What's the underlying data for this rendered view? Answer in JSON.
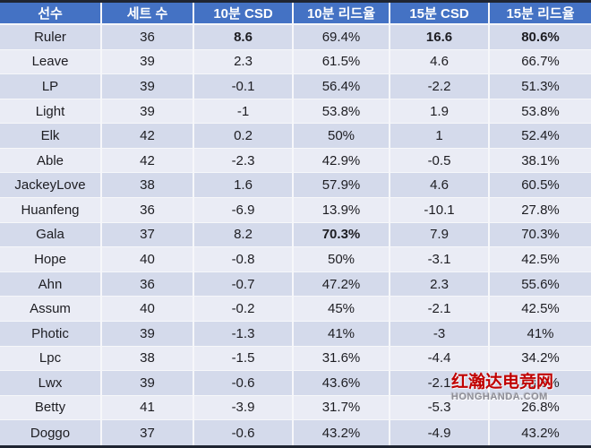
{
  "chart_data": {
    "type": "table",
    "columns": [
      "선수",
      "세트 수",
      "10분 CSD",
      "10분 리드율",
      "15분 CSD",
      "15분 리드율"
    ],
    "rows": [
      [
        "Ruler",
        "36",
        "8.6",
        "69.4%",
        "16.6",
        "80.6%"
      ],
      [
        "Leave",
        "39",
        "2.3",
        "61.5%",
        "4.6",
        "66.7%"
      ],
      [
        "LP",
        "39",
        "-0.1",
        "56.4%",
        "-2.2",
        "51.3%"
      ],
      [
        "Light",
        "39",
        "-1",
        "53.8%",
        "1.9",
        "53.8%"
      ],
      [
        "Elk",
        "42",
        "0.2",
        "50%",
        "1",
        "52.4%"
      ],
      [
        "Able",
        "42",
        "-2.3",
        "42.9%",
        "-0.5",
        "38.1%"
      ],
      [
        "JackeyLove",
        "38",
        "1.6",
        "57.9%",
        "4.6",
        "60.5%"
      ],
      [
        "Huanfeng",
        "36",
        "-6.9",
        "13.9%",
        "-10.1",
        "27.8%"
      ],
      [
        "Gala",
        "37",
        "8.2",
        "70.3%",
        "7.9",
        "70.3%"
      ],
      [
        "Hope",
        "40",
        "-0.8",
        "50%",
        "-3.1",
        "42.5%"
      ],
      [
        "Ahn",
        "36",
        "-0.7",
        "47.2%",
        "2.3",
        "55.6%"
      ],
      [
        "Assum",
        "40",
        "-0.2",
        "45%",
        "-2.1",
        "42.5%"
      ],
      [
        "Photic",
        "39",
        "-1.3",
        "41%",
        "-3",
        "41%"
      ],
      [
        "Lpc",
        "38",
        "-1.5",
        "31.6%",
        "-4.4",
        "34.2%"
      ],
      [
        "Lwx",
        "39",
        "-0.6",
        "43.6%",
        "-2.1",
        "43.6%"
      ],
      [
        "Betty",
        "41",
        "-3.9",
        "31.7%",
        "-5.3",
        "26.8%"
      ],
      [
        "Doggo",
        "37",
        "-0.6",
        "43.2%",
        "-4.9",
        "43.2%"
      ]
    ],
    "bold_cells": [
      [
        0,
        2
      ],
      [
        0,
        4
      ],
      [
        0,
        5
      ],
      [
        8,
        3
      ]
    ]
  },
  "watermark": {
    "line1": "红瀚达电竞网",
    "line2": "HONGHANDA.COM"
  },
  "colors": {
    "header_bg": "#4472c4",
    "row_band_dark": "#d4daeb",
    "row_band_light": "#eaecf5",
    "outer_border": "#1f2532",
    "watermark_red": "#c00000"
  }
}
